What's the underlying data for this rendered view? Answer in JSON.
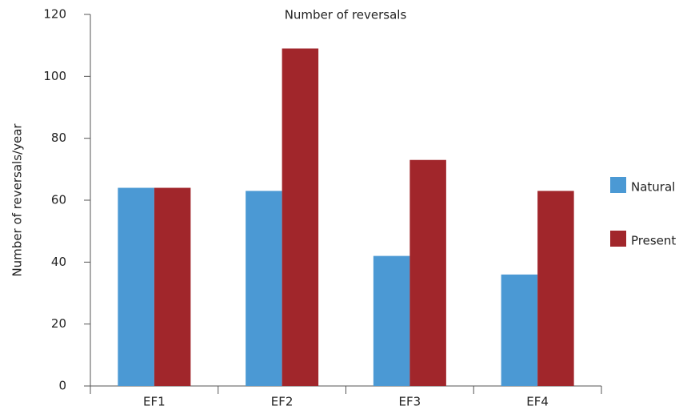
{
  "chart_data": {
    "type": "bar",
    "title": "Number of reversals",
    "y_label": "Number of reversals/year",
    "categories": [
      "EF1",
      "EF2",
      "EF3",
      "EF4"
    ],
    "series": [
      {
        "name": "Natural",
        "color": "#4b99d4",
        "values": [
          64,
          63,
          42,
          36
        ]
      },
      {
        "name": "Present",
        "color": "#a1262b",
        "values": [
          64,
          109,
          73,
          63
        ]
      }
    ],
    "ylim": [
      0,
      120
    ],
    "yticks": [
      0,
      20,
      40,
      60,
      80,
      100,
      120
    ],
    "grid": false,
    "legend": "right"
  }
}
